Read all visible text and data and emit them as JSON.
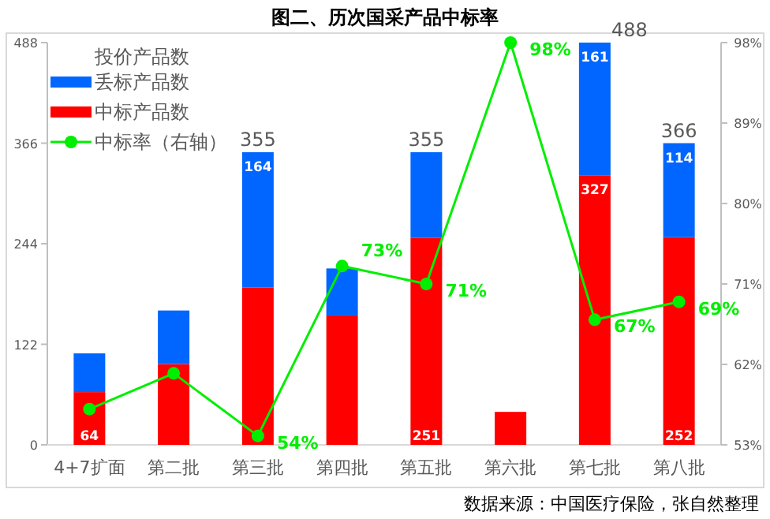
{
  "chart_data": {
    "type": "bar",
    "stacked": true,
    "title": "图二、历次国采产品中标率",
    "legend_title": "投价产品数",
    "legend": "top left",
    "categories": [
      "4+7扩面",
      "第二批",
      "第三批",
      "第四批",
      "第五批",
      "第六批",
      "第七批",
      "第八批"
    ],
    "series": [
      {
        "name": "中标产品数",
        "color": "#ff0000",
        "values": [
          64,
          98,
          191,
          157,
          251,
          40,
          327,
          252
        ],
        "value_labels": [
          "64",
          null,
          null,
          null,
          "251",
          null,
          "327",
          "252"
        ]
      },
      {
        "name": "丢标产品数",
        "color": "#0066ff",
        "values": [
          47,
          65,
          164,
          57,
          104,
          null,
          161,
          114
        ],
        "value_labels": [
          null,
          null,
          "164",
          null,
          null,
          null,
          "161",
          "114"
        ]
      },
      {
        "name": "中标率（右轴）",
        "type": "line",
        "axis": "y2",
        "marker": "circle",
        "color": "#00ee00",
        "values": [
          57,
          61,
          54,
          73,
          71,
          98,
          67,
          69
        ],
        "value_labels": [
          null,
          null,
          "54%",
          "73%",
          "71%",
          "98%",
          "67%",
          "69%"
        ]
      }
    ],
    "totals": [
      null,
      null,
      "355",
      null,
      "355",
      null,
      "488",
      "366"
    ],
    "ylim": [
      0,
      488
    ],
    "yticks": [
      0,
      122,
      244,
      366,
      488
    ],
    "y2lim": [
      53,
      98
    ],
    "y2ticks": [
      {
        "value": 53,
        "label": "53%"
      },
      {
        "value": 62,
        "label": "62%"
      },
      {
        "value": 71,
        "label": "71%"
      },
      {
        "value": 80,
        "label": "80%"
      },
      {
        "value": 89,
        "label": "89%"
      },
      {
        "value": 98,
        "label": "98%"
      }
    ],
    "annotations": [
      "数据来源：中国医疗保险，张自然整理"
    ]
  }
}
